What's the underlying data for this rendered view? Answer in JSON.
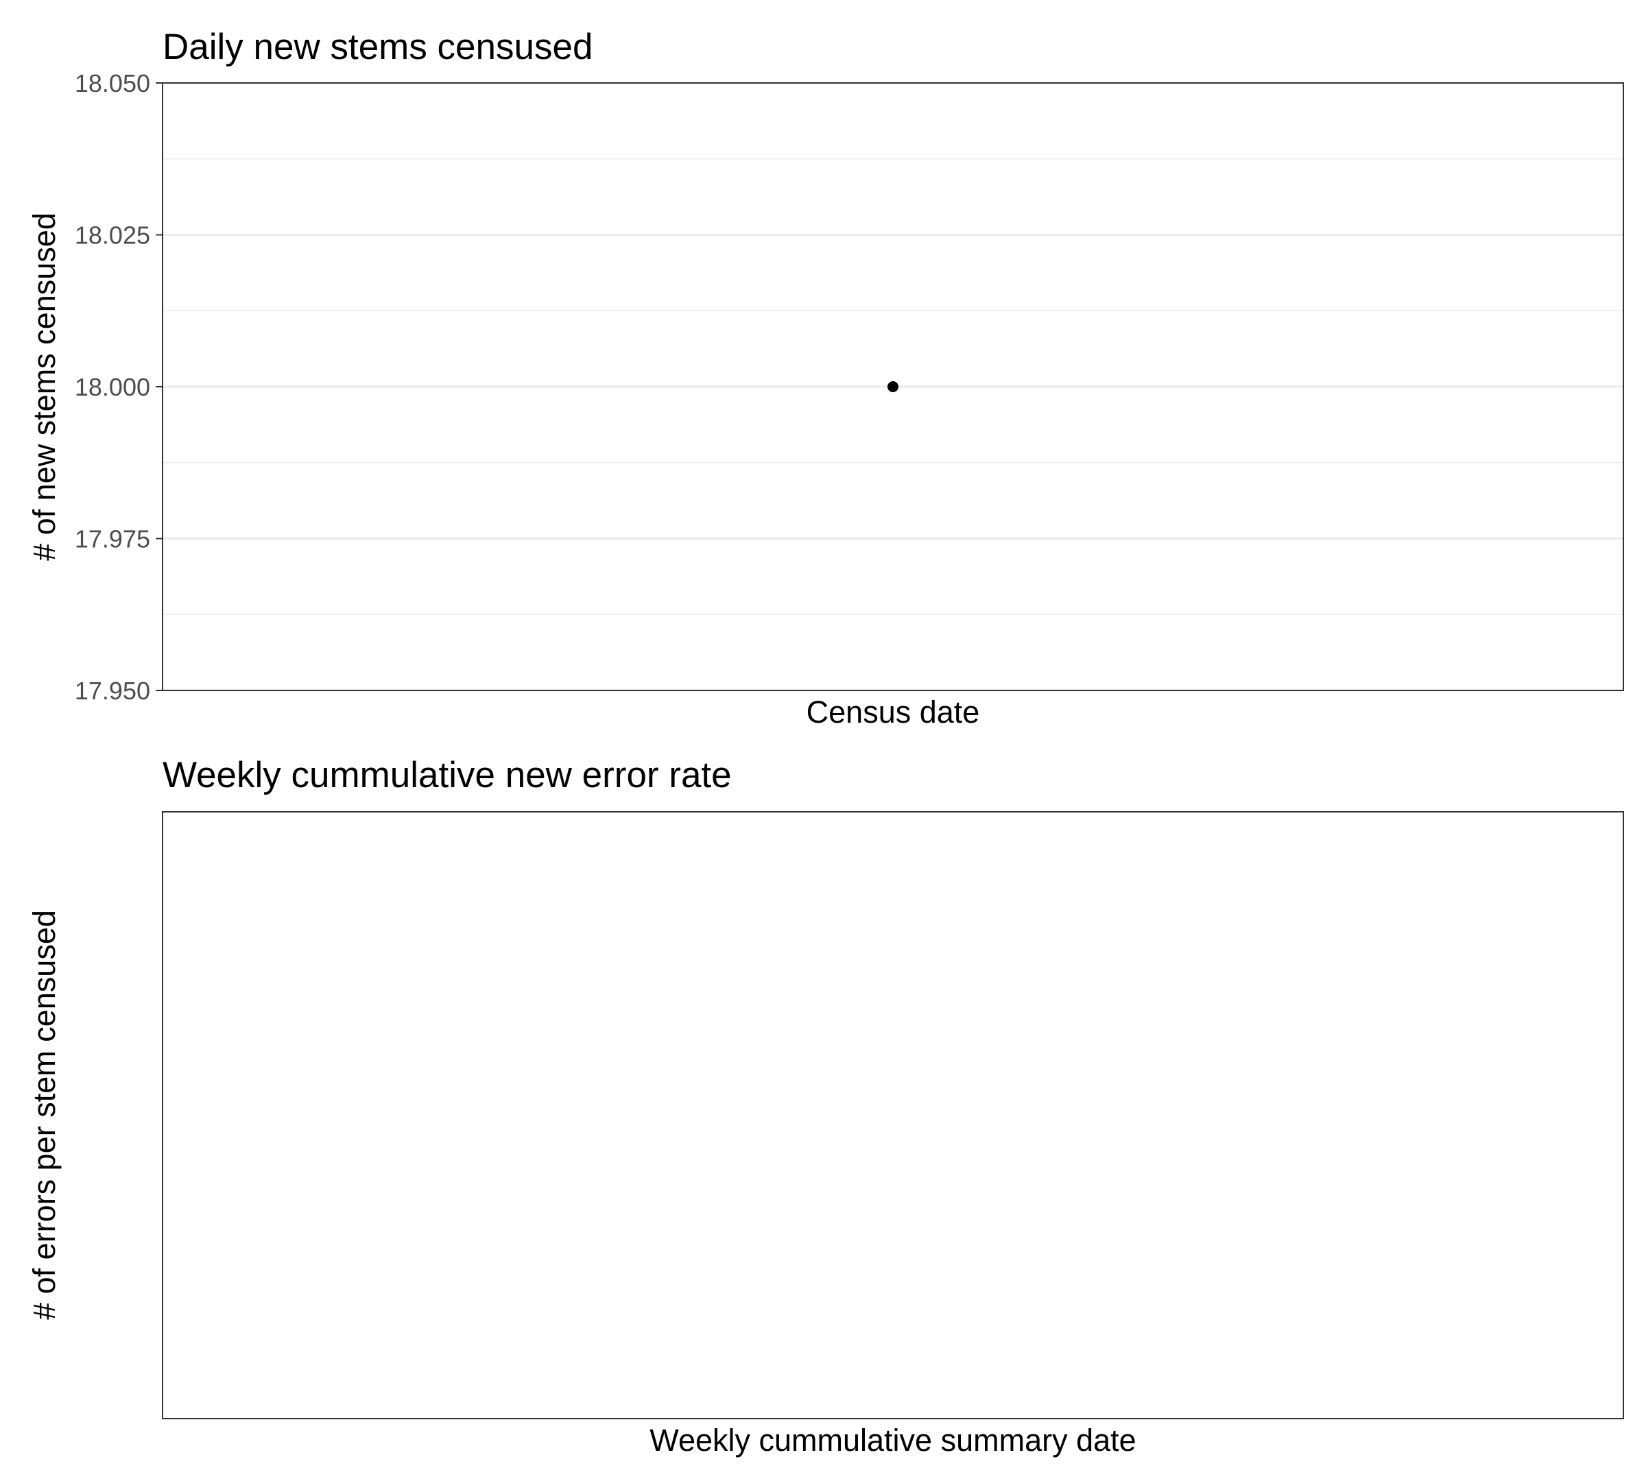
{
  "chart_data": [
    {
      "type": "scatter",
      "title": "Daily new stems censused",
      "xlabel": "Census date",
      "ylabel": "# of new stems censused",
      "ylim": [
        17.95,
        18.05
      ],
      "yticks": [
        17.95,
        17.975,
        18.0,
        18.025,
        18.05
      ],
      "ytick_labels": [
        "17.950",
        "17.975",
        "18.000",
        "18.025",
        "18.050"
      ],
      "yminor": [
        17.9625,
        17.9875,
        18.0125,
        18.0375
      ],
      "x_categories": [
        ""
      ],
      "points": [
        {
          "x": 0,
          "y": 18.0
        }
      ],
      "grid": true,
      "point_color": "#000000"
    },
    {
      "type": "scatter",
      "title": "Weekly cummulative new error rate",
      "xlabel": "Weekly cummulative summary date",
      "ylabel": "# of errors per stem censused",
      "points": [],
      "grid": false
    }
  ]
}
